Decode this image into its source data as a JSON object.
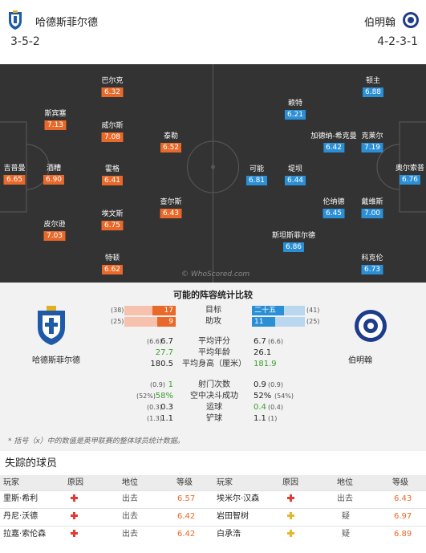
{
  "header": {
    "home_team": "哈德斯菲尔德",
    "away_team": "伯明翰",
    "home_formation": "3-5-2",
    "away_formation": "4-2-3-1"
  },
  "colors": {
    "home": "#e8692a",
    "away": "#2b8fd6",
    "pitch": "#333333"
  },
  "pitch": {
    "watermark": "© WhoScored.com",
    "home_players": [
      {
        "name": "吉普曼",
        "rating": "6.65"
      },
      {
        "name": "斯宾塞",
        "rating": "7.13"
      },
      {
        "name": "酒糟",
        "rating": "6.90"
      },
      {
        "name": "皮尔逊",
        "rating": "7.03"
      },
      {
        "name": "巴尔克",
        "rating": "6.32"
      },
      {
        "name": "威尔斯",
        "rating": "7.08"
      },
      {
        "name": "霍格",
        "rating": "6.41"
      },
      {
        "name": "埃文斯",
        "rating": "6.75"
      },
      {
        "name": "特顿",
        "rating": "6.62"
      },
      {
        "name": "泰勒",
        "rating": "6.52"
      },
      {
        "name": "查尔斯",
        "rating": "6.43"
      }
    ],
    "away_players": [
      {
        "name": "奥尔索普",
        "rating": "6.76"
      },
      {
        "name": "顿主",
        "rating": "6.88"
      },
      {
        "name": "克莱尔",
        "rating": "7.19"
      },
      {
        "name": "戴维斯",
        "rating": "7.00"
      },
      {
        "name": "科克伦",
        "rating": "6.73"
      },
      {
        "name": "加德纳-希克曼",
        "rating": "6.42"
      },
      {
        "name": "伦纳德",
        "rating": "6.45"
      },
      {
        "name": "赖特",
        "rating": "6.21"
      },
      {
        "name": "堤坝",
        "rating": "6.44"
      },
      {
        "name": "斯坦斯菲尔德",
        "rating": "6.86"
      },
      {
        "name": "可能",
        "rating": "6.81"
      }
    ]
  },
  "stats": {
    "title": "可能的阵容统计比较",
    "home_name": "哈德斯菲尔德",
    "away_name": "伯明翰",
    "bars": [
      {
        "label": "目标",
        "home_league": "(38)",
        "home": "17",
        "home_frac": 0.45,
        "away": "二十五",
        "away_frac": 0.61,
        "away_league": "(41)"
      },
      {
        "label": "助攻",
        "home_league": "(25)",
        "home": "9",
        "home_frac": 0.36,
        "away": "11",
        "away_frac": 0.44,
        "away_league": "(25)"
      }
    ],
    "rows": [
      {
        "label": "平均评分",
        "home_league": "(6.6)",
        "home": "6.7",
        "home_green": false,
        "away": "6.7",
        "away_green": false,
        "away_league": "(6.6)"
      },
      {
        "label": "平均年龄",
        "home_league": "",
        "home": "27.7",
        "home_green": true,
        "away": "26.1",
        "away_green": false,
        "away_league": ""
      },
      {
        "label": "平均身高（厘米）",
        "home_league": "",
        "home": "180.5",
        "home_green": false,
        "away": "181.9",
        "away_green": true,
        "away_league": ""
      },
      {
        "label": "射门次数",
        "home_league": "(0.9)",
        "home": "1",
        "home_green": true,
        "away": "0.9",
        "away_green": false,
        "away_league": "(0.9)"
      },
      {
        "label": "空中决斗成功",
        "home_league": "(52%)",
        "home": "58%",
        "home_green": true,
        "away": "52%",
        "away_green": false,
        "away_league": "(54%)"
      },
      {
        "label": "运球",
        "home_league": "(0.3)",
        "home": "0.3",
        "home_green": false,
        "away": "0.4",
        "away_green": true,
        "away_league": "(0.4)"
      },
      {
        "label": "铲球",
        "home_league": "(1.3)",
        "home": "1.1",
        "home_green": false,
        "away": "1.1",
        "away_green": false,
        "away_league": "(1)"
      }
    ],
    "footnote": "* 括号（x）中的数值是英甲联赛的整体球员统计数据。"
  },
  "missing": {
    "title": "失踪的球员",
    "headers": [
      "玩家",
      "原因",
      "地位",
      "等级",
      "玩家",
      "原因",
      "地位",
      "等级"
    ],
    "rows": [
      {
        "h_name": "里斯·希利",
        "h_reason": "red-cross",
        "h_status": "出去",
        "h_rating": "6.57",
        "a_name": "埃米尔·汉森",
        "a_reason": "red-cross",
        "a_status": "出去",
        "a_rating": "6.43"
      },
      {
        "h_name": "丹尼·沃德",
        "h_reason": "red-cross",
        "h_status": "出去",
        "h_rating": "6.42",
        "a_name": "岩田智树",
        "a_reason": "yellow-cross",
        "a_status": "疑",
        "a_rating": "6.97"
      },
      {
        "h_name": "拉嘉·索伦森",
        "h_reason": "red-cross",
        "h_status": "出去",
        "h_rating": "6.42",
        "a_name": "白承浩",
        "a_reason": "yellow-cross",
        "a_status": "疑",
        "a_rating": "6.89"
      }
    ]
  }
}
